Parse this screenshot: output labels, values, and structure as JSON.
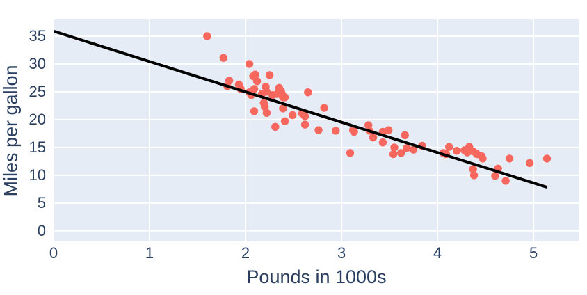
{
  "chart_data": {
    "type": "scatter",
    "title": "",
    "xlabel": "Pounds in 1000s",
    "ylabel": "Miles per gallon",
    "x_ticks": [
      0,
      1,
      2,
      3,
      4,
      5
    ],
    "y_ticks": [
      0,
      5,
      10,
      15,
      20,
      25,
      30,
      35
    ],
    "xlim": [
      0,
      5.47
    ],
    "ylim": [
      -1.9,
      38
    ],
    "grid": true,
    "legend": false,
    "marker_radius": 5.7,
    "trend_width": 4,
    "points": [
      [
        1.6,
        35.0
      ],
      [
        1.77,
        31.1
      ],
      [
        1.81,
        26.0
      ],
      [
        1.83,
        27.0
      ],
      [
        1.93,
        26.3
      ],
      [
        1.95,
        25.5
      ],
      [
        2.04,
        30.0
      ],
      [
        2.04,
        24.9
      ],
      [
        2.06,
        24.4
      ],
      [
        2.08,
        27.8
      ],
      [
        2.09,
        25.5
      ],
      [
        2.09,
        21.5
      ],
      [
        2.1,
        28.1
      ],
      [
        2.12,
        26.9
      ],
      [
        2.17,
        24.6
      ],
      [
        2.19,
        23.0
      ],
      [
        2.2,
        22.3
      ],
      [
        2.21,
        25.9
      ],
      [
        2.22,
        25.0
      ],
      [
        2.22,
        21.2
      ],
      [
        2.25,
        28.0
      ],
      [
        2.28,
        24.4
      ],
      [
        2.31,
        18.7
      ],
      [
        2.33,
        24.6
      ],
      [
        2.35,
        25.7
      ],
      [
        2.37,
        25.1
      ],
      [
        2.38,
        24.6
      ],
      [
        2.39,
        24.0
      ],
      [
        2.39,
        22.0
      ],
      [
        2.41,
        24.0
      ],
      [
        2.41,
        19.7
      ],
      [
        2.49,
        20.8
      ],
      [
        2.59,
        21.1
      ],
      [
        2.62,
        20.6
      ],
      [
        2.62,
        19.1
      ],
      [
        2.65,
        24.9
      ],
      [
        2.76,
        18.1
      ],
      [
        2.82,
        22.1
      ],
      [
        2.94,
        18.0
      ],
      [
        3.09,
        14.0
      ],
      [
        3.12,
        18.1
      ],
      [
        3.13,
        17.8
      ],
      [
        3.28,
        19.0
      ],
      [
        3.29,
        18.0
      ],
      [
        3.33,
        16.8
      ],
      [
        3.43,
        17.8
      ],
      [
        3.43,
        15.9
      ],
      [
        3.49,
        18.1
      ],
      [
        3.54,
        13.8
      ],
      [
        3.55,
        15.0
      ],
      [
        3.62,
        14.0
      ],
      [
        3.66,
        17.2
      ],
      [
        3.68,
        14.9
      ],
      [
        3.75,
        14.6
      ],
      [
        3.84,
        15.3
      ],
      [
        4.06,
        14.0
      ],
      [
        4.09,
        13.8
      ],
      [
        4.12,
        15.1
      ],
      [
        4.2,
        14.4
      ],
      [
        4.28,
        14.5
      ],
      [
        4.31,
        14.1
      ],
      [
        4.33,
        15.1
      ],
      [
        4.37,
        14.3
      ],
      [
        4.37,
        11.1
      ],
      [
        4.38,
        10.0
      ],
      [
        4.41,
        13.8
      ],
      [
        4.46,
        13.4
      ],
      [
        4.47,
        13.0
      ],
      [
        4.63,
        11.2
      ],
      [
        4.6,
        9.9
      ],
      [
        4.71,
        9.0
      ],
      [
        4.75,
        13.0
      ],
      [
        4.96,
        12.2
      ],
      [
        5.14,
        13.0
      ]
    ],
    "trendline": {
      "x1": 0,
      "y1": 35.9,
      "x2": 5.13,
      "y2": 7.9
    },
    "colors": {
      "marker": "#F6685E",
      "trend": "#000000",
      "plot_bg": "#E5ECF6",
      "grid": "#FFFFFF",
      "text": "#2A3F5F"
    }
  }
}
